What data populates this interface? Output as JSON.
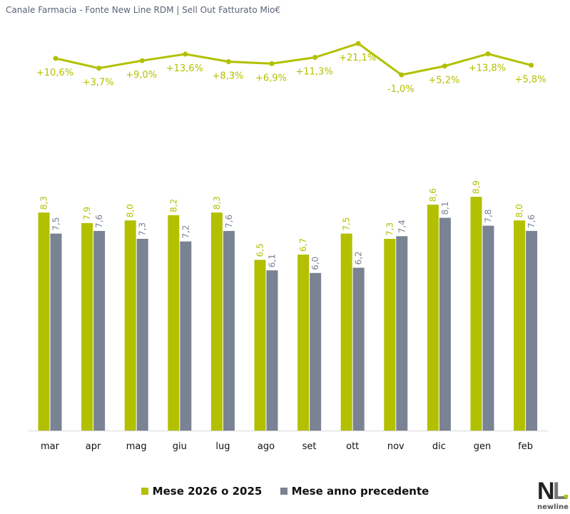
{
  "title": "Canale Farmacia - Fonte New Line RDM | Sell Out Fatturato Mio€",
  "colors": {
    "current": "#b2c000",
    "previous": "#7a8394",
    "line": "#b2c000"
  },
  "chart_data": {
    "type": "bar",
    "categories": [
      "mar",
      "apr",
      "mag",
      "giu",
      "lug",
      "ago",
      "set",
      "ott",
      "nov",
      "dic",
      "gen",
      "feb"
    ],
    "series": [
      {
        "name": "Mese 2026 o 2025",
        "values": [
          8.3,
          7.9,
          8.0,
          8.2,
          8.3,
          6.5,
          6.7,
          7.5,
          7.3,
          8.6,
          8.9,
          8.0
        ],
        "labels": [
          "8,3",
          "7,9",
          "8,0",
          "8,2",
          "8,3",
          "6,5",
          "6,7",
          "7,5",
          "7,3",
          "8,6",
          "8,9",
          "8,0"
        ]
      },
      {
        "name": "Mese anno precedente",
        "values": [
          7.5,
          7.6,
          7.3,
          7.2,
          7.6,
          6.1,
          6.0,
          6.2,
          7.4,
          8.1,
          7.8,
          7.6
        ],
        "labels": [
          "7,5",
          "7,6",
          "7,3",
          "7,2",
          "7,6",
          "6,1",
          "6,0",
          "6,2",
          "7,4",
          "8,1",
          "7,8",
          "7,6"
        ]
      }
    ],
    "growth_line": {
      "type": "line",
      "values": [
        10.6,
        3.7,
        9.0,
        13.6,
        8.3,
        6.9,
        11.3,
        21.1,
        -1.0,
        5.2,
        13.8,
        5.8
      ],
      "labels": [
        "+10,6%",
        "+3,7%",
        "+9,0%",
        "+13,6%",
        "+8,3%",
        "+6,9%",
        "+11,3%",
        "+21,1%",
        "-1,0%",
        "+5,2%",
        "+13,8%",
        "+5,8%"
      ]
    },
    "ylim": [
      0,
      9
    ],
    "grid": false,
    "legend_position": "bottom"
  },
  "logo": {
    "text": "NL",
    "subtext": "newline"
  }
}
